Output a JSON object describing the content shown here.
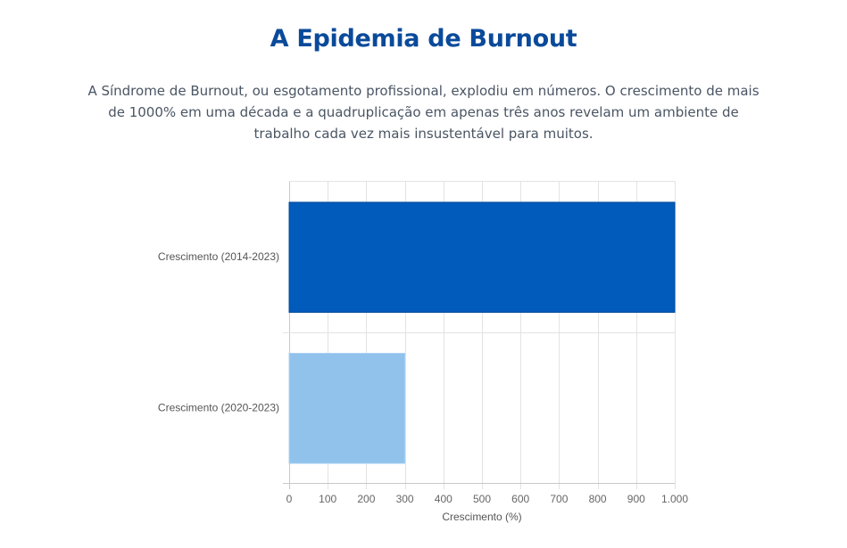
{
  "header": {
    "title": "A Epidemia de Burnout",
    "description": "A Síndrome de Burnout, ou esgotamento profissional, explodiu em números. O crescimento de mais de 1000% em uma década e a quadruplicação em apenas três anos revelam um ambiente de trabalho cada vez mais insustentável para muitos."
  },
  "chart_data": {
    "type": "bar",
    "orientation": "horizontal",
    "categories": [
      "Crescimento (2014-2023)",
      "Crescimento (2020-2023)"
    ],
    "values": [
      1000,
      300
    ],
    "bar_colors": [
      "#005bbb",
      "#90c2ec"
    ],
    "xlabel": "Crescimento (%)",
    "ylabel": "",
    "xlim": [
      0,
      1000
    ],
    "x_ticks": [
      0,
      100,
      200,
      300,
      400,
      500,
      600,
      700,
      800,
      900,
      1000
    ],
    "x_tick_labels": [
      "0",
      "100",
      "200",
      "300",
      "400",
      "500",
      "600",
      "700",
      "800",
      "900",
      "1.000"
    ],
    "grid": true,
    "legend": "none"
  }
}
